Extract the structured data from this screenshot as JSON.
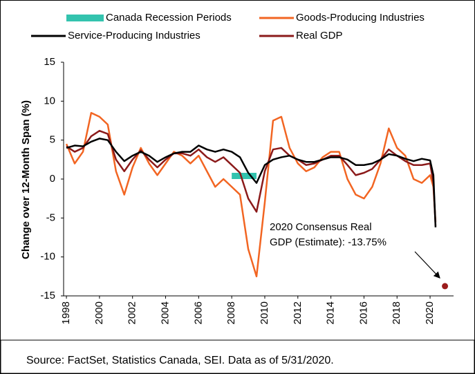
{
  "chart_data": {
    "type": "line",
    "y_label": "Change over 12-Month Span (%)",
    "source": "Source: FactSet, Statistics Canada, SEI. Data as of 5/31/2020.",
    "x": [
      1998,
      1998.5,
      1999,
      1999.5,
      2000,
      2000.5,
      2001,
      2001.5,
      2002,
      2002.5,
      2003,
      2003.5,
      2004,
      2004.5,
      2005,
      2005.5,
      2006,
      2006.5,
      2007,
      2007.5,
      2008,
      2008.5,
      2009,
      2009.5,
      2010,
      2010.5,
      2011,
      2011.5,
      2012,
      2012.5,
      2013,
      2013.5,
      2014,
      2014.5,
      2015,
      2015.5,
      2016,
      2016.5,
      2017,
      2017.5,
      2018,
      2018.5,
      2019,
      2019.5,
      2020,
      2020.2,
      2020.33
    ],
    "series": [
      {
        "name": "Goods-Producing Industries",
        "color": "#f26522",
        "width": 2.5,
        "values": [
          4.5,
          2,
          3.5,
          8.5,
          8,
          7,
          1,
          -2,
          1.5,
          4,
          2,
          0.5,
          2,
          3.5,
          3,
          2,
          3,
          1,
          -1,
          0,
          -1,
          -2,
          -9,
          -12.5,
          -3,
          7.5,
          8,
          4,
          2,
          1,
          1.5,
          2.8,
          3.5,
          3.5,
          0,
          -2,
          -2.5,
          -1,
          2,
          6.5,
          4,
          3,
          0,
          -0.5,
          0.5,
          -1,
          -5.5
        ]
      },
      {
        "name": "Real GDP",
        "color": "#8b1a1a",
        "width": 2.5,
        "values": [
          4.2,
          3.5,
          4,
          5.5,
          6.2,
          5.8,
          2.5,
          1,
          2.5,
          3.7,
          2.5,
          1.5,
          2.5,
          3.3,
          3.3,
          3,
          3.8,
          2.8,
          2.2,
          2.8,
          1.8,
          0.8,
          -2.5,
          -4.2,
          1,
          3.8,
          4,
          3,
          2.5,
          1.8,
          2,
          2.5,
          3,
          3,
          1.8,
          0.5,
          0.8,
          1.3,
          2.5,
          3.8,
          3,
          2.3,
          1.8,
          1.8,
          2,
          -0.5,
          -6
        ]
      },
      {
        "name": "Service-Producing Industries",
        "color": "#000000",
        "width": 2.5,
        "values": [
          4,
          4.3,
          4.2,
          4.8,
          5.2,
          5,
          3.5,
          2.3,
          3,
          3.5,
          3,
          2.2,
          2.8,
          3.3,
          3.5,
          3.5,
          4.3,
          3.8,
          3.5,
          3.8,
          3.5,
          2.8,
          0.8,
          -0.5,
          1.8,
          2.5,
          2.8,
          3,
          2.5,
          2.2,
          2.2,
          2.5,
          2.8,
          2.8,
          2.5,
          1.8,
          1.8,
          2,
          2.5,
          3.2,
          3,
          2.6,
          2.3,
          2.6,
          2.4,
          0.5,
          -6.2
        ]
      }
    ],
    "recessions": {
      "name": "Canada Recession Periods",
      "color": "#33c3ae",
      "x": [
        [
          2008.0,
          2009.5
        ]
      ],
      "values": [
        0.8
      ]
    },
    "estimate": {
      "x": 2020.9,
      "y": -13.75,
      "color": "#9b1c1c",
      "label": [
        "2020 Consensus Real",
        "GDP (Estimate): -13.75%"
      ]
    },
    "xlim": [
      1997.83,
      2021.42
    ],
    "ylim": [
      -15,
      15
    ],
    "xticks": [
      1998,
      2000,
      2002,
      2004,
      2006,
      2008,
      2010,
      2012,
      2014,
      2016,
      2018,
      2020
    ],
    "yticks": [
      -15,
      -10,
      -5,
      0,
      5,
      10,
      15
    ],
    "grid": false
  }
}
